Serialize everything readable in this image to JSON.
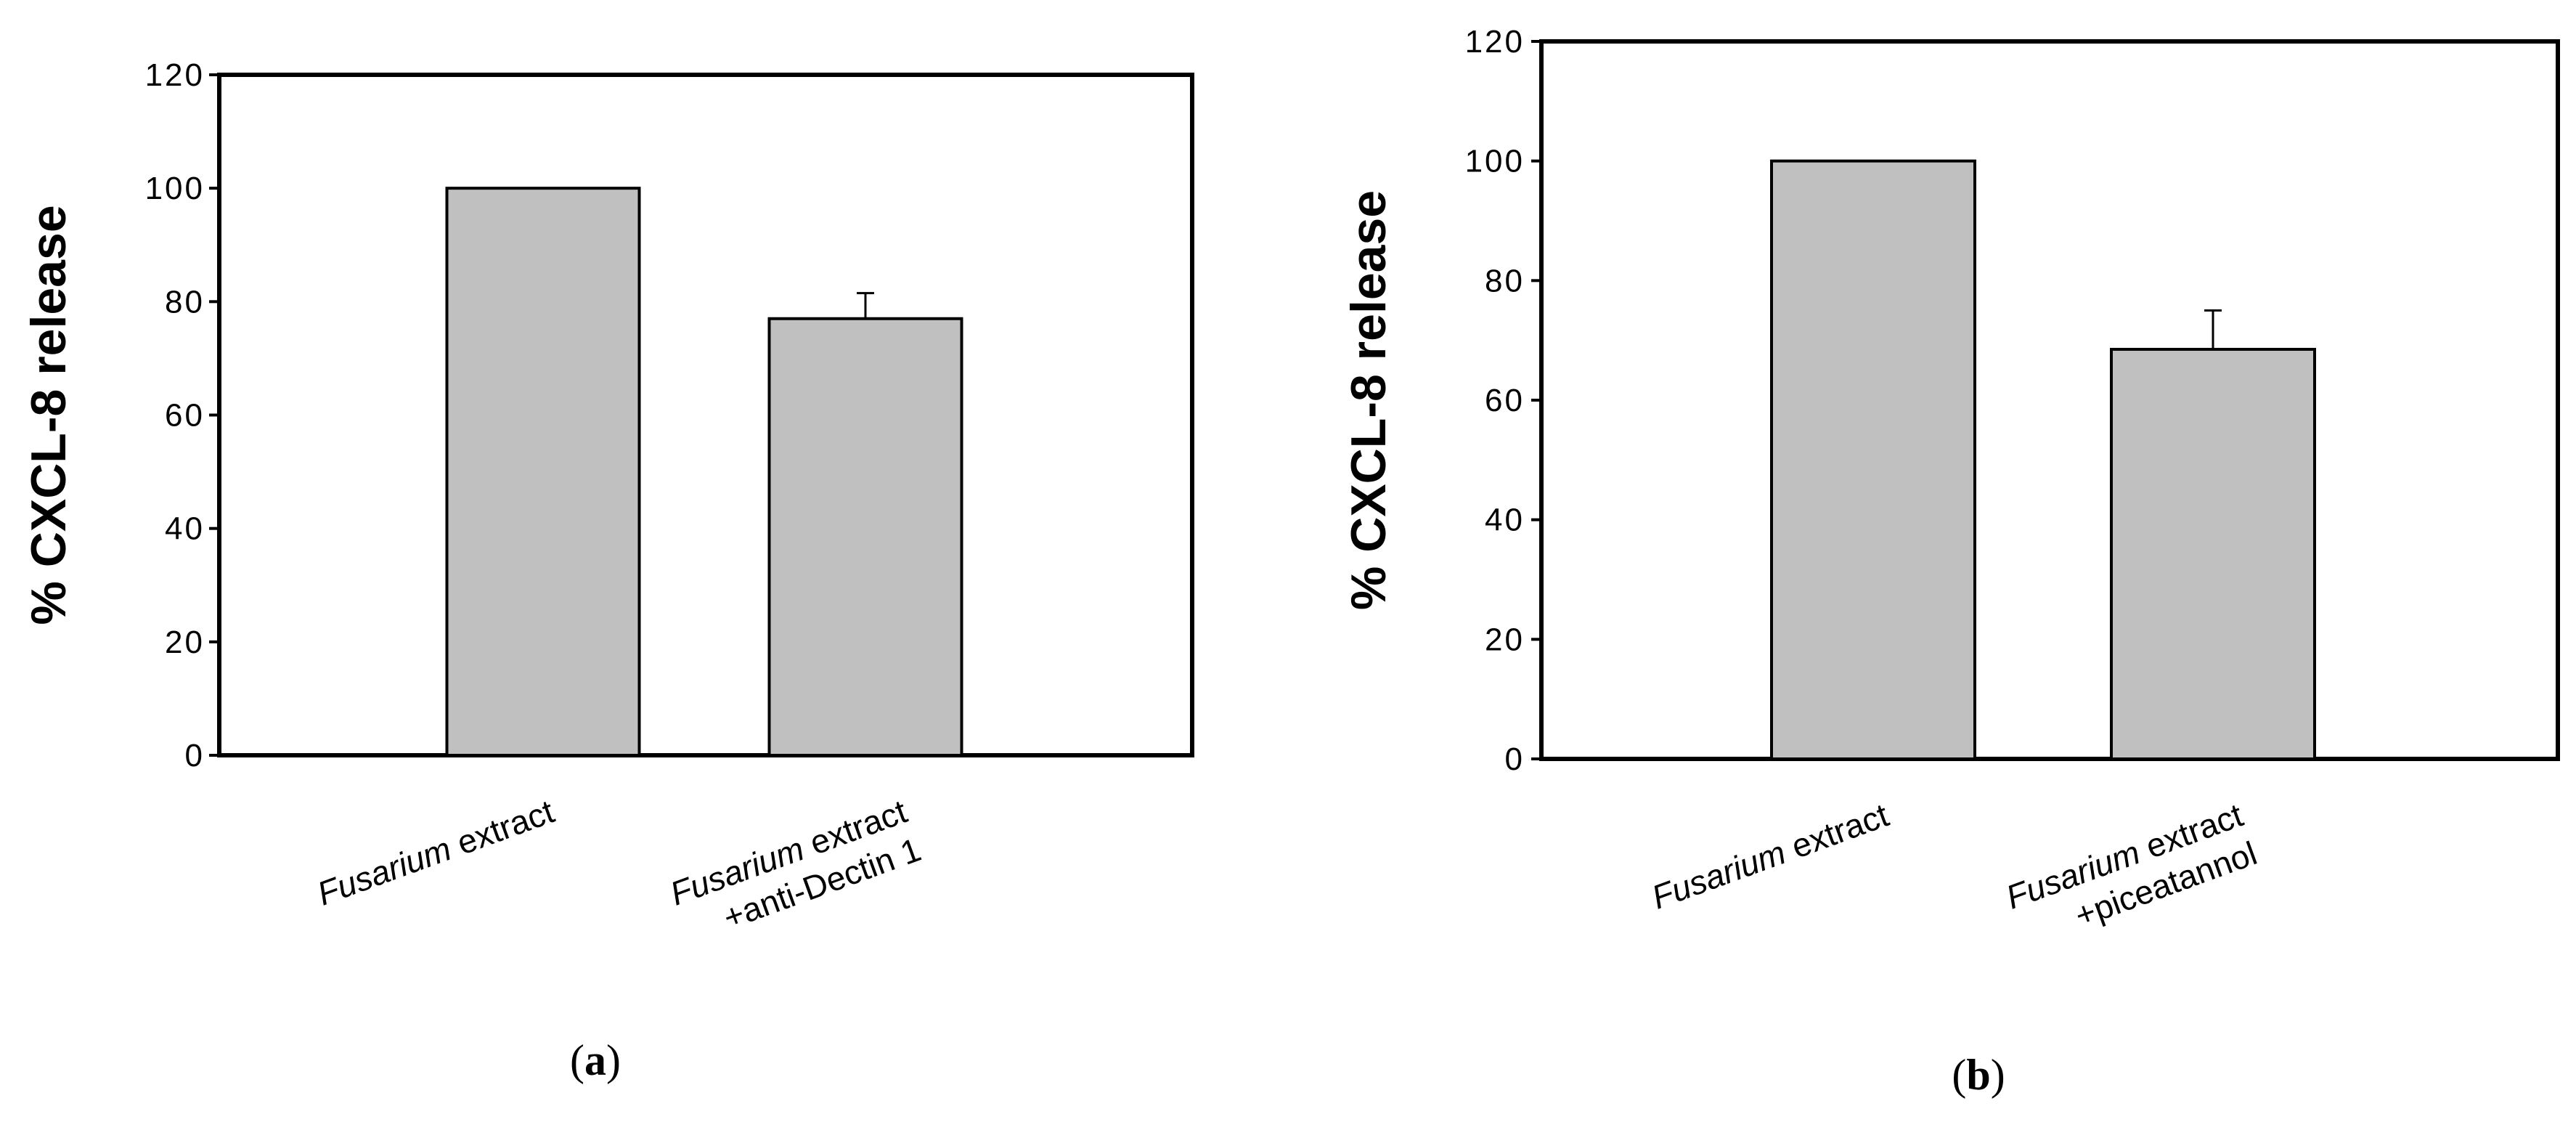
{
  "chart_data": [
    {
      "type": "bar",
      "panel_label": {
        "open": "(",
        "letter": "a",
        "close": ")"
      },
      "ylabel": "% CXCL-8 release",
      "xlabel": "",
      "ylim": [
        0,
        120
      ],
      "yticks": [
        "0",
        "20",
        "40",
        "60",
        "80",
        "100",
        "120"
      ],
      "categories": [
        {
          "italic": "Fusarium",
          "rest": " extract",
          "line2": ""
        },
        {
          "italic": "Fusarium",
          "rest": " extract",
          "line2": "+anti-Dectin 1"
        }
      ],
      "values": [
        100,
        77
      ],
      "errors": [
        0,
        4.5
      ],
      "bar_color": "#c0c0c0",
      "grid": false
    },
    {
      "type": "bar",
      "panel_label": {
        "open": "(",
        "letter": "b",
        "close": ")"
      },
      "ylabel": "% CXCL-8 release",
      "xlabel": "",
      "ylim": [
        0,
        120
      ],
      "yticks": [
        "0",
        "20",
        "40",
        "60",
        "80",
        "100",
        "120"
      ],
      "categories": [
        {
          "italic": "Fusarium",
          "rest": " extract",
          "line2": ""
        },
        {
          "italic": "Fusarium",
          "rest": " extract",
          "line2": "+piceatannol"
        }
      ],
      "values": [
        100,
        68.5
      ],
      "errors": [
        0,
        6.5
      ],
      "bar_color": "#c0c0c0",
      "grid": false
    }
  ]
}
